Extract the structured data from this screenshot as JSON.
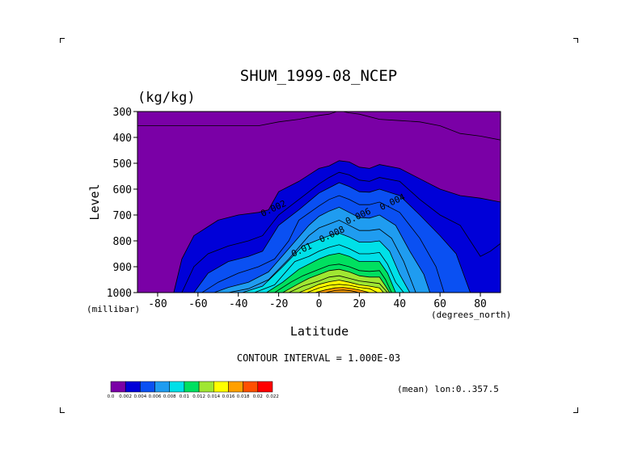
{
  "title": "SHUM_1999-08_NCEP",
  "units_label": "(kg/kg)",
  "contour_interval_text": "CONTOUR INTERVAL = 1.000E-03",
  "footer_note": "(mean) lon:0..357.5",
  "chart_data": {
    "type": "heatmap",
    "title": "SHUM_1999-08_NCEP",
    "units": "(kg/kg)",
    "xlabel": "Latitude",
    "xunit": "(degrees_north)",
    "ylabel": "Level",
    "yunit": "(millibar)",
    "xlim": [
      -90,
      90
    ],
    "ylim": [
      300,
      1000
    ],
    "y_reversed": true,
    "xticks": [
      -80,
      -60,
      -40,
      -20,
      0,
      20,
      40,
      60,
      80
    ],
    "xtick_labels": [
      "-80",
      "-60",
      "-40",
      "-20",
      "0",
      "20",
      "40",
      "60",
      "80"
    ],
    "yticks": [
      300,
      400,
      500,
      600,
      700,
      800,
      900,
      1000
    ],
    "ytick_labels": [
      "300",
      "400",
      "500",
      "600",
      "700",
      "800",
      "900",
      "1000"
    ],
    "colorbar": {
      "levels": [
        0.0,
        0.002,
        0.004,
        0.006,
        0.008,
        0.01,
        0.012,
        0.014,
        0.016,
        0.018,
        0.02,
        0.022
      ],
      "labels": [
        "0.0",
        "0.002",
        "0.004",
        "0.006",
        "0.008",
        "0.01",
        "0.012",
        "0.014",
        "0.016",
        "0.018",
        "0.02",
        "0.022"
      ],
      "colors": [
        "#7a00a6",
        "#0000d8",
        "#0a50f2",
        "#1f9cf0",
        "#00e0e8",
        "#00e060",
        "#a0e632",
        "#ffff00",
        "#ffa000",
        "#ff5000",
        "#ff0000"
      ]
    },
    "contour_labels": [
      {
        "text": "0.002",
        "lat": -22,
        "lev": 685
      },
      {
        "text": "0.004",
        "lat": 37,
        "lev": 660
      },
      {
        "text": "0.006",
        "lat": 20,
        "lev": 715
      },
      {
        "text": "0.008",
        "lat": 7,
        "lev": 785
      },
      {
        "text": "0.01",
        "lat": -8,
        "lev": 845
      }
    ],
    "contours": [
      {
        "value": 0.001,
        "points": [
          [
            -90,
            355
          ],
          [
            -70,
            355
          ],
          [
            -60,
            355
          ],
          [
            -50,
            355
          ],
          [
            -40,
            355
          ],
          [
            -30,
            355
          ],
          [
            -20,
            340
          ],
          [
            -10,
            330
          ],
          [
            0,
            315
          ],
          [
            5,
            310
          ],
          [
            10,
            297
          ],
          [
            15,
            305
          ],
          [
            20,
            310
          ],
          [
            30,
            330
          ],
          [
            40,
            335
          ],
          [
            50,
            340
          ],
          [
            60,
            355
          ],
          [
            70,
            385
          ],
          [
            80,
            395
          ],
          [
            90,
            410
          ]
        ]
      },
      {
        "value": 0.002,
        "points": [
          [
            -72,
            1000
          ],
          [
            -68,
            870
          ],
          [
            -62,
            780
          ],
          [
            -50,
            720
          ],
          [
            -40,
            700
          ],
          [
            -30,
            690
          ],
          [
            -25,
            680
          ],
          [
            -20,
            610
          ],
          [
            -10,
            570
          ],
          [
            0,
            520
          ],
          [
            5,
            510
          ],
          [
            10,
            490
          ],
          [
            15,
            495
          ],
          [
            20,
            515
          ],
          [
            25,
            520
          ],
          [
            30,
            505
          ],
          [
            40,
            520
          ],
          [
            50,
            560
          ],
          [
            60,
            600
          ],
          [
            70,
            625
          ],
          [
            80,
            635
          ],
          [
            90,
            650
          ]
        ]
      },
      {
        "value": 0.003,
        "points": [
          [
            -68,
            1000
          ],
          [
            -62,
            900
          ],
          [
            -55,
            850
          ],
          [
            -45,
            820
          ],
          [
            -35,
            800
          ],
          [
            -28,
            780
          ],
          [
            -20,
            700
          ],
          [
            -10,
            640
          ],
          [
            0,
            580
          ],
          [
            5,
            555
          ],
          [
            10,
            535
          ],
          [
            15,
            545
          ],
          [
            20,
            565
          ],
          [
            25,
            570
          ],
          [
            30,
            555
          ],
          [
            40,
            570
          ],
          [
            50,
            640
          ],
          [
            60,
            700
          ],
          [
            70,
            740
          ],
          [
            80,
            860
          ],
          [
            85,
            840
          ],
          [
            90,
            810
          ]
        ]
      },
      {
        "value": 0.004,
        "points": [
          [
            -62,
            1000
          ],
          [
            -55,
            925
          ],
          [
            -45,
            880
          ],
          [
            -35,
            860
          ],
          [
            -28,
            840
          ],
          [
            -20,
            740
          ],
          [
            -10,
            680
          ],
          [
            0,
            615
          ],
          [
            5,
            595
          ],
          [
            10,
            575
          ],
          [
            15,
            590
          ],
          [
            20,
            610
          ],
          [
            25,
            612
          ],
          [
            30,
            600
          ],
          [
            40,
            625
          ],
          [
            50,
            700
          ],
          [
            60,
            780
          ],
          [
            68,
            850
          ],
          [
            75,
            1000
          ]
        ]
      },
      {
        "value": 0.005,
        "points": [
          [
            -58,
            1000
          ],
          [
            -50,
            960
          ],
          [
            -40,
            925
          ],
          [
            -30,
            900
          ],
          [
            -22,
            870
          ],
          [
            -15,
            800
          ],
          [
            -10,
            720
          ],
          [
            0,
            665
          ],
          [
            5,
            640
          ],
          [
            10,
            625
          ],
          [
            15,
            640
          ],
          [
            20,
            660
          ],
          [
            25,
            660
          ],
          [
            30,
            650
          ],
          [
            40,
            690
          ],
          [
            50,
            790
          ],
          [
            58,
            900
          ],
          [
            62,
            1000
          ]
        ]
      },
      {
        "value": 0.006,
        "points": [
          [
            -52,
            1000
          ],
          [
            -45,
            980
          ],
          [
            -35,
            960
          ],
          [
            -25,
            920
          ],
          [
            -15,
            830
          ],
          [
            -5,
            740
          ],
          [
            0,
            705
          ],
          [
            5,
            685
          ],
          [
            10,
            670
          ],
          [
            15,
            690
          ],
          [
            20,
            710
          ],
          [
            25,
            712
          ],
          [
            30,
            700
          ],
          [
            38,
            740
          ],
          [
            45,
            840
          ],
          [
            52,
            930
          ],
          [
            55,
            1000
          ]
        ]
      },
      {
        "value": 0.007,
        "points": [
          [
            -45,
            1000
          ],
          [
            -35,
            985
          ],
          [
            -25,
            950
          ],
          [
            -15,
            870
          ],
          [
            -5,
            780
          ],
          [
            0,
            750
          ],
          [
            5,
            735
          ],
          [
            10,
            720
          ],
          [
            15,
            740
          ],
          [
            20,
            760
          ],
          [
            25,
            760
          ],
          [
            30,
            755
          ],
          [
            36,
            790
          ],
          [
            42,
            880
          ],
          [
            48,
            1000
          ]
        ]
      },
      {
        "value": 0.008,
        "points": [
          [
            -38,
            1000
          ],
          [
            -28,
            975
          ],
          [
            -18,
            900
          ],
          [
            -8,
            820
          ],
          [
            0,
            795
          ],
          [
            5,
            780
          ],
          [
            10,
            770
          ],
          [
            15,
            785
          ],
          [
            20,
            805
          ],
          [
            25,
            805
          ],
          [
            30,
            800
          ],
          [
            35,
            840
          ],
          [
            40,
            930
          ],
          [
            45,
            1000
          ]
        ]
      },
      {
        "value": 0.009,
        "points": [
          [
            -32,
            1000
          ],
          [
            -22,
            970
          ],
          [
            -12,
            880
          ],
          [
            -5,
            860
          ],
          [
            0,
            840
          ],
          [
            5,
            825
          ],
          [
            10,
            815
          ],
          [
            15,
            830
          ],
          [
            20,
            850
          ],
          [
            25,
            850
          ],
          [
            30,
            845
          ],
          [
            34,
            890
          ],
          [
            38,
            960
          ],
          [
            42,
            1000
          ]
        ]
      },
      {
        "value": 0.01,
        "points": [
          [
            -26,
            1000
          ],
          [
            -18,
            960
          ],
          [
            -10,
            910
          ],
          [
            -5,
            890
          ],
          [
            0,
            870
          ],
          [
            5,
            855
          ],
          [
            10,
            848
          ],
          [
            15,
            860
          ],
          [
            20,
            880
          ],
          [
            25,
            880
          ],
          [
            30,
            880
          ],
          [
            34,
            925
          ],
          [
            38,
            1000
          ]
        ]
      },
      {
        "value": 0.011,
        "points": [
          [
            -22,
            1000
          ],
          [
            -14,
            960
          ],
          [
            -8,
            935
          ],
          [
            0,
            910
          ],
          [
            5,
            895
          ],
          [
            10,
            890
          ],
          [
            15,
            900
          ],
          [
            20,
            915
          ],
          [
            25,
            918
          ],
          [
            30,
            915
          ],
          [
            33,
            950
          ],
          [
            36,
            1000
          ]
        ]
      },
      {
        "value": 0.012,
        "points": [
          [
            -18,
            1000
          ],
          [
            -10,
            965
          ],
          [
            -5,
            945
          ],
          [
            0,
            930
          ],
          [
            5,
            915
          ],
          [
            10,
            910
          ],
          [
            15,
            920
          ],
          [
            20,
            935
          ],
          [
            25,
            940
          ],
          [
            30,
            940
          ],
          [
            33,
            975
          ],
          [
            35,
            1000
          ]
        ]
      },
      {
        "value": 0.013,
        "points": [
          [
            -15,
            1000
          ],
          [
            -8,
            975
          ],
          [
            0,
            955
          ],
          [
            5,
            940
          ],
          [
            10,
            935
          ],
          [
            15,
            945
          ],
          [
            20,
            955
          ],
          [
            25,
            960
          ],
          [
            30,
            965
          ],
          [
            34,
            1000
          ]
        ]
      },
      {
        "value": 0.014,
        "points": [
          [
            -10,
            1000
          ],
          [
            -5,
            985
          ],
          [
            0,
            968
          ],
          [
            5,
            958
          ],
          [
            10,
            952
          ],
          [
            15,
            960
          ],
          [
            20,
            970
          ],
          [
            25,
            975
          ],
          [
            30,
            982
          ],
          [
            32,
            1000
          ]
        ]
      },
      {
        "value": 0.015,
        "points": [
          [
            -6,
            1000
          ],
          [
            0,
            982
          ],
          [
            5,
            972
          ],
          [
            10,
            968
          ],
          [
            15,
            972
          ],
          [
            20,
            980
          ],
          [
            25,
            985
          ],
          [
            29,
            1000
          ]
        ]
      },
      {
        "value": 0.016,
        "points": [
          [
            -2,
            1000
          ],
          [
            3,
            990
          ],
          [
            8,
            982
          ],
          [
            12,
            980
          ],
          [
            16,
            984
          ],
          [
            21,
            992
          ],
          [
            25,
            1000
          ]
        ]
      },
      {
        "value": 0.017,
        "points": [
          [
            3,
            1000
          ],
          [
            8,
            992
          ],
          [
            12,
            990
          ],
          [
            16,
            993
          ],
          [
            20,
            1000
          ]
        ]
      }
    ]
  }
}
